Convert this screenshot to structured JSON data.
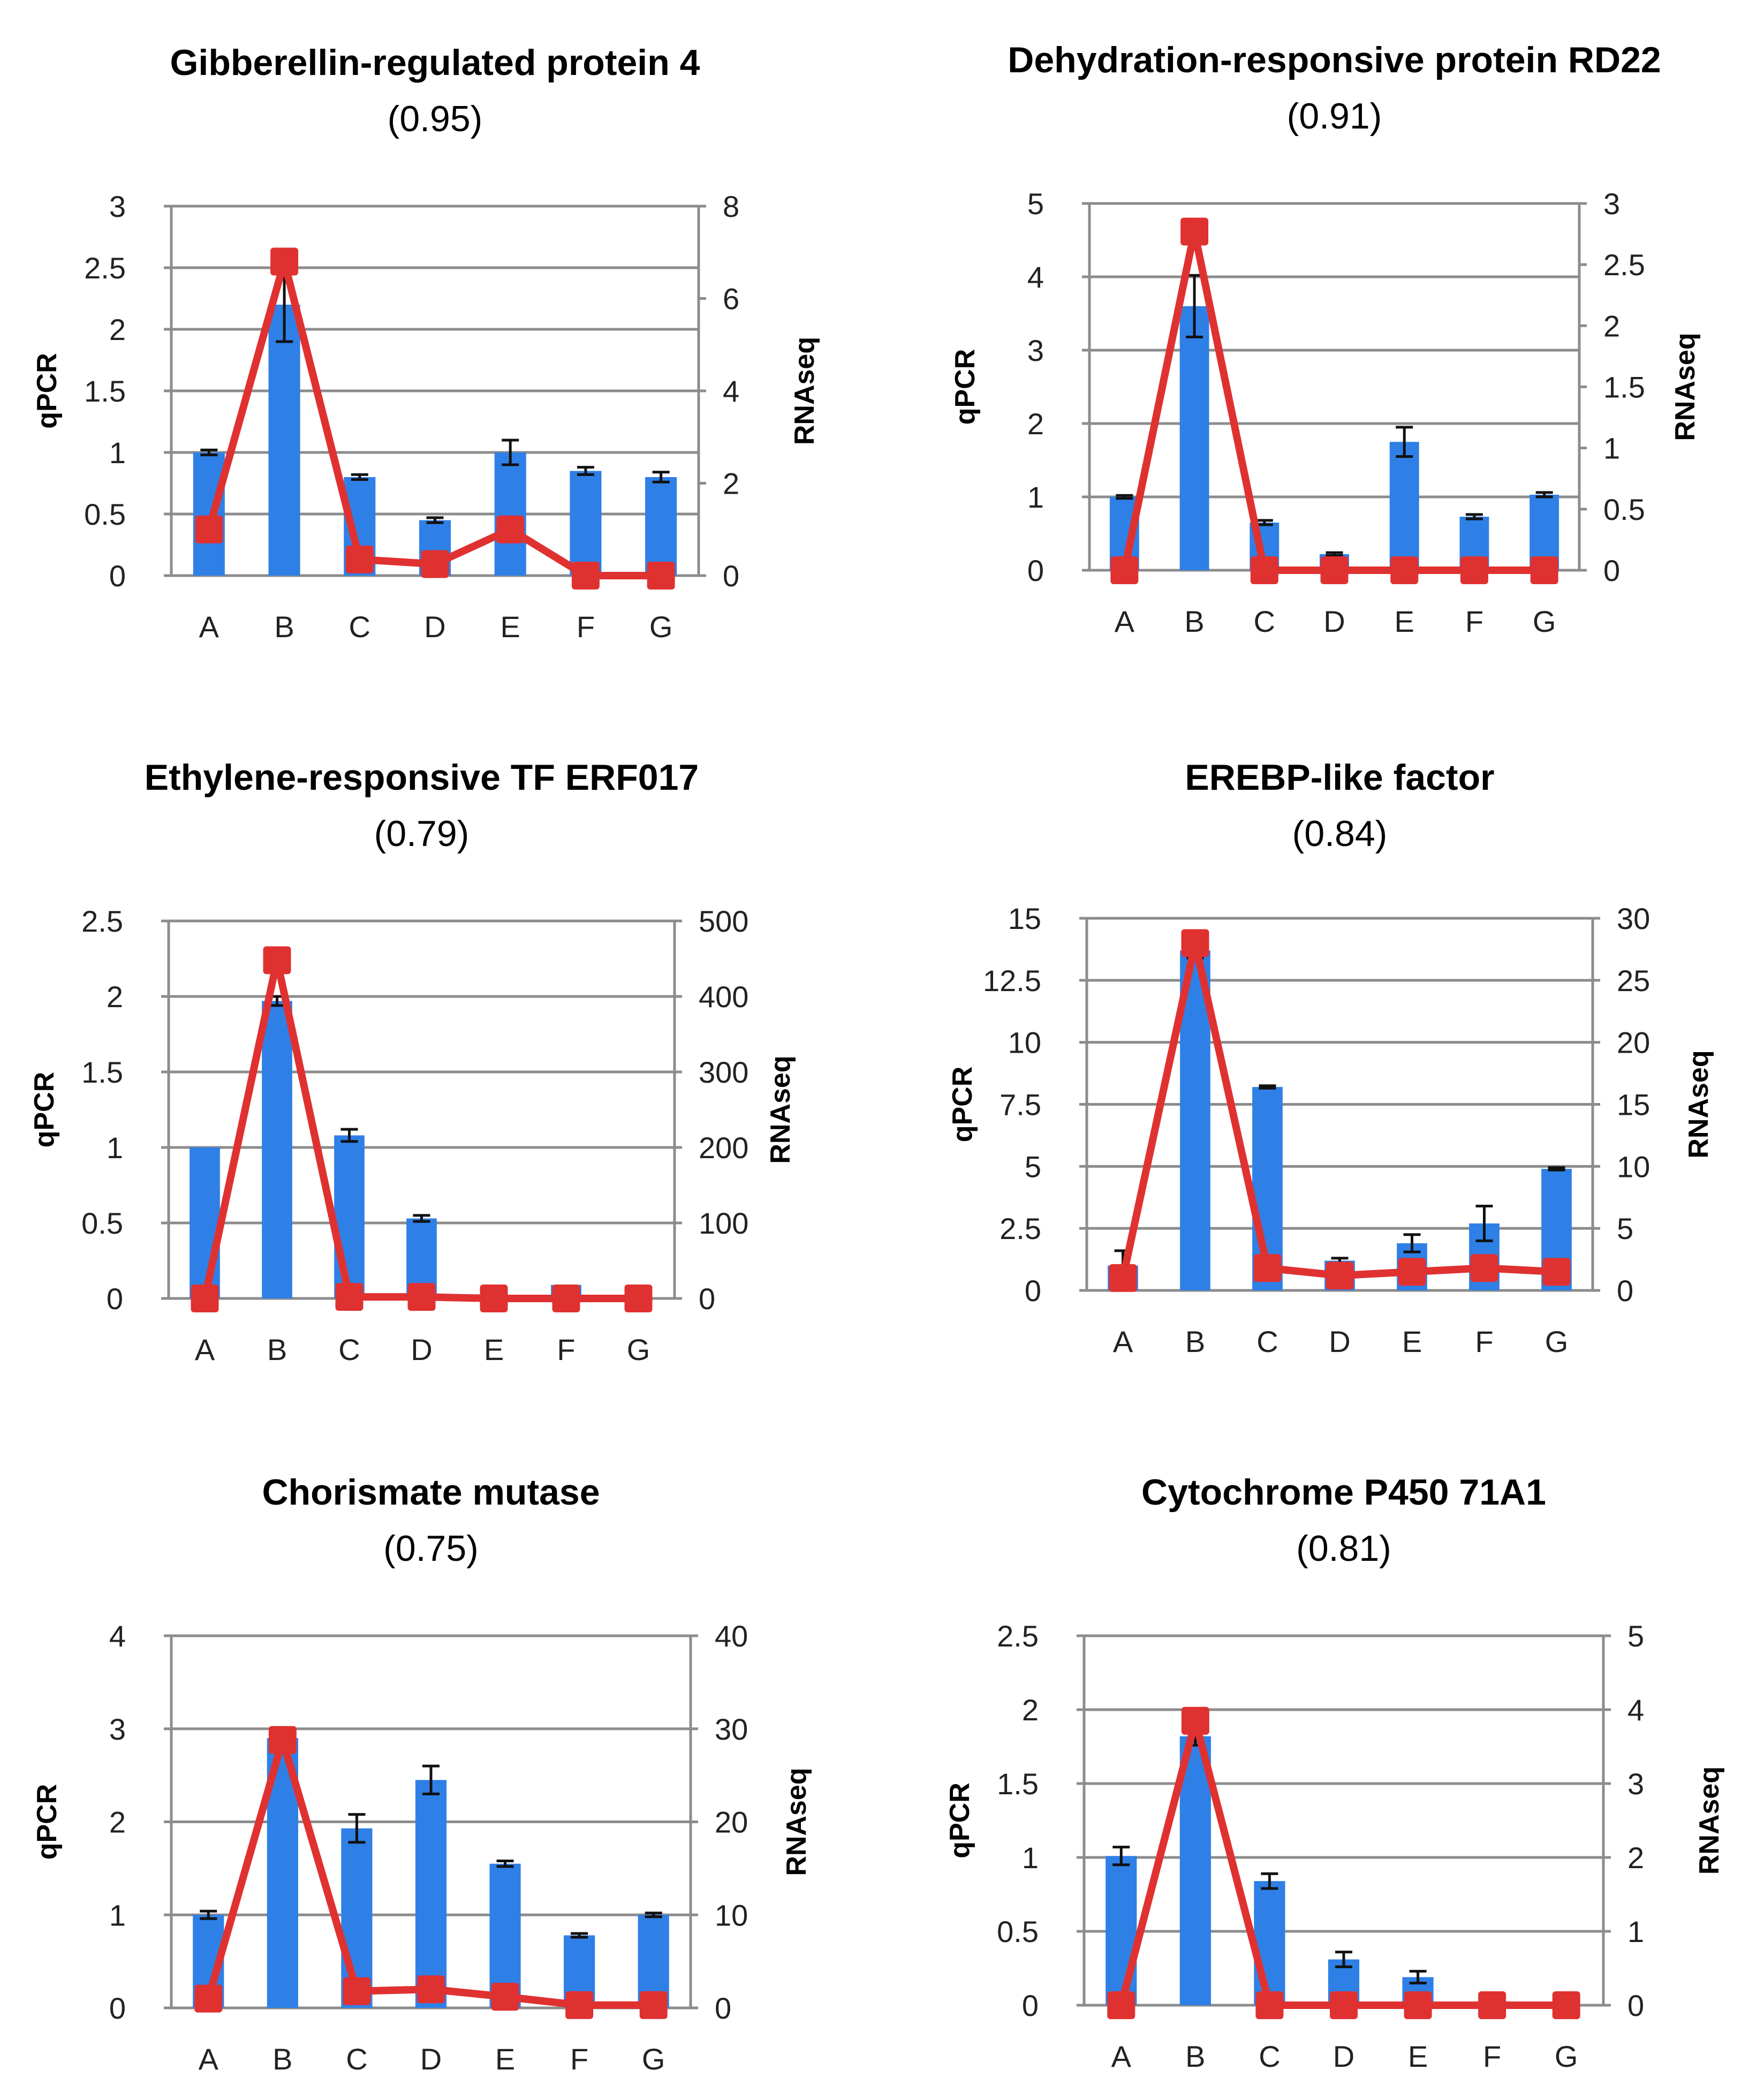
{
  "colors": {
    "bar": "#2f80e6",
    "line": "#e03131",
    "marker": "#e03131",
    "error": "#111111"
  },
  "chart_data": [
    {
      "type": "bar+line",
      "title": "Gibberellin-regulated protein 4",
      "subtitle": "(0.95)",
      "categories": [
        "A",
        "B",
        "C",
        "D",
        "E",
        "F",
        "G"
      ],
      "ylabel": "qPCR",
      "y2label": "RNAseq",
      "ylim": [
        0,
        3
      ],
      "yticks": [
        "0",
        "0.5",
        "1",
        "1.5",
        "2",
        "2.5",
        "3"
      ],
      "y2lim": [
        0,
        8
      ],
      "y2ticks": [
        "0",
        "2",
        "4",
        "6",
        "8"
      ],
      "bars": [
        1.0,
        2.2,
        0.8,
        0.45,
        1.0,
        0.85,
        0.8
      ],
      "errors": [
        0.02,
        0.3,
        0.02,
        0.02,
        0.1,
        0.03,
        0.04
      ],
      "line": [
        1.0,
        6.8,
        0.35,
        0.25,
        1.0,
        0.0,
        0.0
      ],
      "grid": true
    },
    {
      "type": "bar+line",
      "title": "Dehydration-responsive protein RD22",
      "subtitle": "(0.91)",
      "categories": [
        "A",
        "B",
        "C",
        "D",
        "E",
        "F",
        "G"
      ],
      "ylabel": "qPCR",
      "y2label": "RNAseq",
      "ylim": [
        0,
        5
      ],
      "yticks": [
        "0",
        "1",
        "2",
        "3",
        "4",
        "5"
      ],
      "y2lim": [
        0,
        3
      ],
      "y2ticks": [
        "0",
        "0.5",
        "1",
        "1.5",
        "2",
        "2.5",
        "3"
      ],
      "bars": [
        1.0,
        3.6,
        0.65,
        0.22,
        1.75,
        0.73,
        1.03
      ],
      "errors": [
        0.02,
        0.42,
        0.03,
        0.02,
        0.2,
        0.03,
        0.03
      ],
      "line": [
        0.0,
        2.77,
        0.0,
        0.0,
        0.0,
        0.0,
        0.0
      ],
      "grid": true
    },
    {
      "type": "bar+line",
      "title": "Ethylene-responsive TF ERF017",
      "subtitle": "(0.79)",
      "categories": [
        "A",
        "B",
        "C",
        "D",
        "E",
        "F",
        "G"
      ],
      "ylabel": "qPCR",
      "y2label": "RNAseq",
      "ylim": [
        0,
        2.5
      ],
      "yticks": [
        "0",
        "0.5",
        "1",
        "1.5",
        "2",
        "2.5"
      ],
      "y2lim": [
        0,
        500
      ],
      "y2ticks": [
        "0",
        "100",
        "200",
        "300",
        "400",
        "500"
      ],
      "bars": [
        1.0,
        1.97,
        1.08,
        0.53,
        0.0,
        0.09,
        0.0
      ],
      "errors": [
        0.0,
        0.03,
        0.04,
        0.02,
        0.0,
        0.0,
        0.0
      ],
      "line": [
        0,
        448,
        2,
        2,
        0,
        0,
        0
      ],
      "grid": true
    },
    {
      "type": "bar+line",
      "title": "EREBP-like factor",
      "subtitle": "(0.84)",
      "categories": [
        "A",
        "B",
        "C",
        "D",
        "E",
        "F",
        "G"
      ],
      "ylabel": "qPCR",
      "y2label": "RNAseq",
      "ylim": [
        0,
        15
      ],
      "yticks": [
        "0",
        "2.5",
        "5",
        "7.5",
        "10",
        "12.5",
        "15"
      ],
      "y2lim": [
        0,
        30
      ],
      "y2ticks": [
        "0",
        "5",
        "10",
        "15",
        "20",
        "25",
        "30"
      ],
      "bars": [
        1.0,
        13.7,
        8.2,
        1.2,
        1.9,
        2.7,
        4.9
      ],
      "errors": [
        0.6,
        0.3,
        0.05,
        0.1,
        0.35,
        0.7,
        0.05
      ],
      "line": [
        1.0,
        28.0,
        1.8,
        1.2,
        1.5,
        1.8,
        1.5
      ],
      "grid": true
    },
    {
      "type": "bar+line",
      "title": "Chorismate mutase",
      "subtitle": "(0.75)",
      "categories": [
        "A",
        "B",
        "C",
        "D",
        "E",
        "F",
        "G"
      ],
      "ylabel": "qPCR",
      "y2label": "RNAseq",
      "ylim": [
        0,
        4
      ],
      "yticks": [
        "0",
        "1",
        "2",
        "3",
        "4"
      ],
      "y2lim": [
        0,
        40
      ],
      "y2ticks": [
        "0",
        "10",
        "20",
        "30",
        "40"
      ],
      "bars": [
        1.0,
        2.9,
        1.93,
        2.45,
        1.55,
        0.78,
        1.0
      ],
      "errors": [
        0.04,
        0.1,
        0.15,
        0.15,
        0.03,
        0.02,
        0.02
      ],
      "line": [
        1.0,
        28.8,
        1.8,
        2.0,
        1.2,
        0.3,
        0.3
      ],
      "grid": true
    },
    {
      "type": "bar+line",
      "title": "Cytochrome P450 71A1",
      "subtitle": "(0.81)",
      "categories": [
        "A",
        "B",
        "C",
        "D",
        "E",
        "F",
        "G"
      ],
      "ylabel": "qPCR",
      "y2label": "RNAseq",
      "ylim": [
        0,
        2.5
      ],
      "yticks": [
        "0",
        "0.5",
        "1",
        "1.5",
        "2",
        "2.5"
      ],
      "y2lim": [
        0,
        5
      ],
      "y2ticks": [
        "0",
        "1",
        "2",
        "3",
        "4",
        "5"
      ],
      "bars": [
        1.01,
        1.82,
        0.84,
        0.31,
        0.19,
        0.0,
        0.0
      ],
      "errors": [
        0.06,
        0.06,
        0.05,
        0.05,
        0.04,
        0.0,
        0.0
      ],
      "line": [
        0.0,
        3.85,
        0.0,
        0.0,
        0.0,
        0.0,
        0.0
      ],
      "grid": true
    }
  ]
}
